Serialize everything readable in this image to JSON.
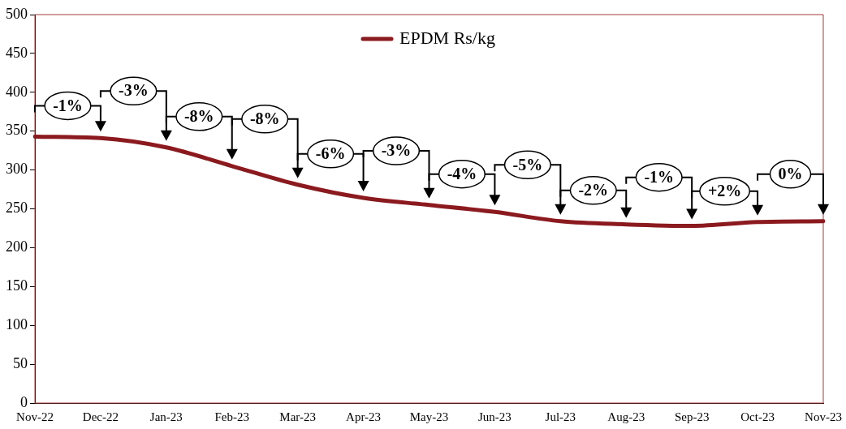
{
  "chart_data": {
    "type": "line",
    "categories": [
      "Nov-22",
      "Dec-22",
      "Jan-23",
      "Feb-23",
      "Mar-23",
      "Apr-23",
      "May-23",
      "Jun-23",
      "Jul-23",
      "Aug-23",
      "Sep-23",
      "Oct-23",
      "Nov-23"
    ],
    "series": [
      {
        "name": "EPDM Rs/kg",
        "color": "#8b1a1f",
        "values": [
          343,
          341,
          329,
          305,
          281,
          264,
          255,
          246,
          234,
          230,
          228,
          233,
          234
        ]
      }
    ],
    "ylim": [
      0,
      500
    ],
    "yticks": [
      0,
      50,
      100,
      150,
      200,
      250,
      300,
      350,
      400,
      450,
      500
    ],
    "grid": false,
    "legend": "top",
    "marker": "none",
    "line_style": "solid",
    "annotations": [
      "-1%",
      "-3%",
      "-8%",
      "-8%",
      "-6%",
      "-3%",
      "-4%",
      "-5%",
      "-2%",
      "-1%",
      "+2%",
      "0%"
    ]
  }
}
